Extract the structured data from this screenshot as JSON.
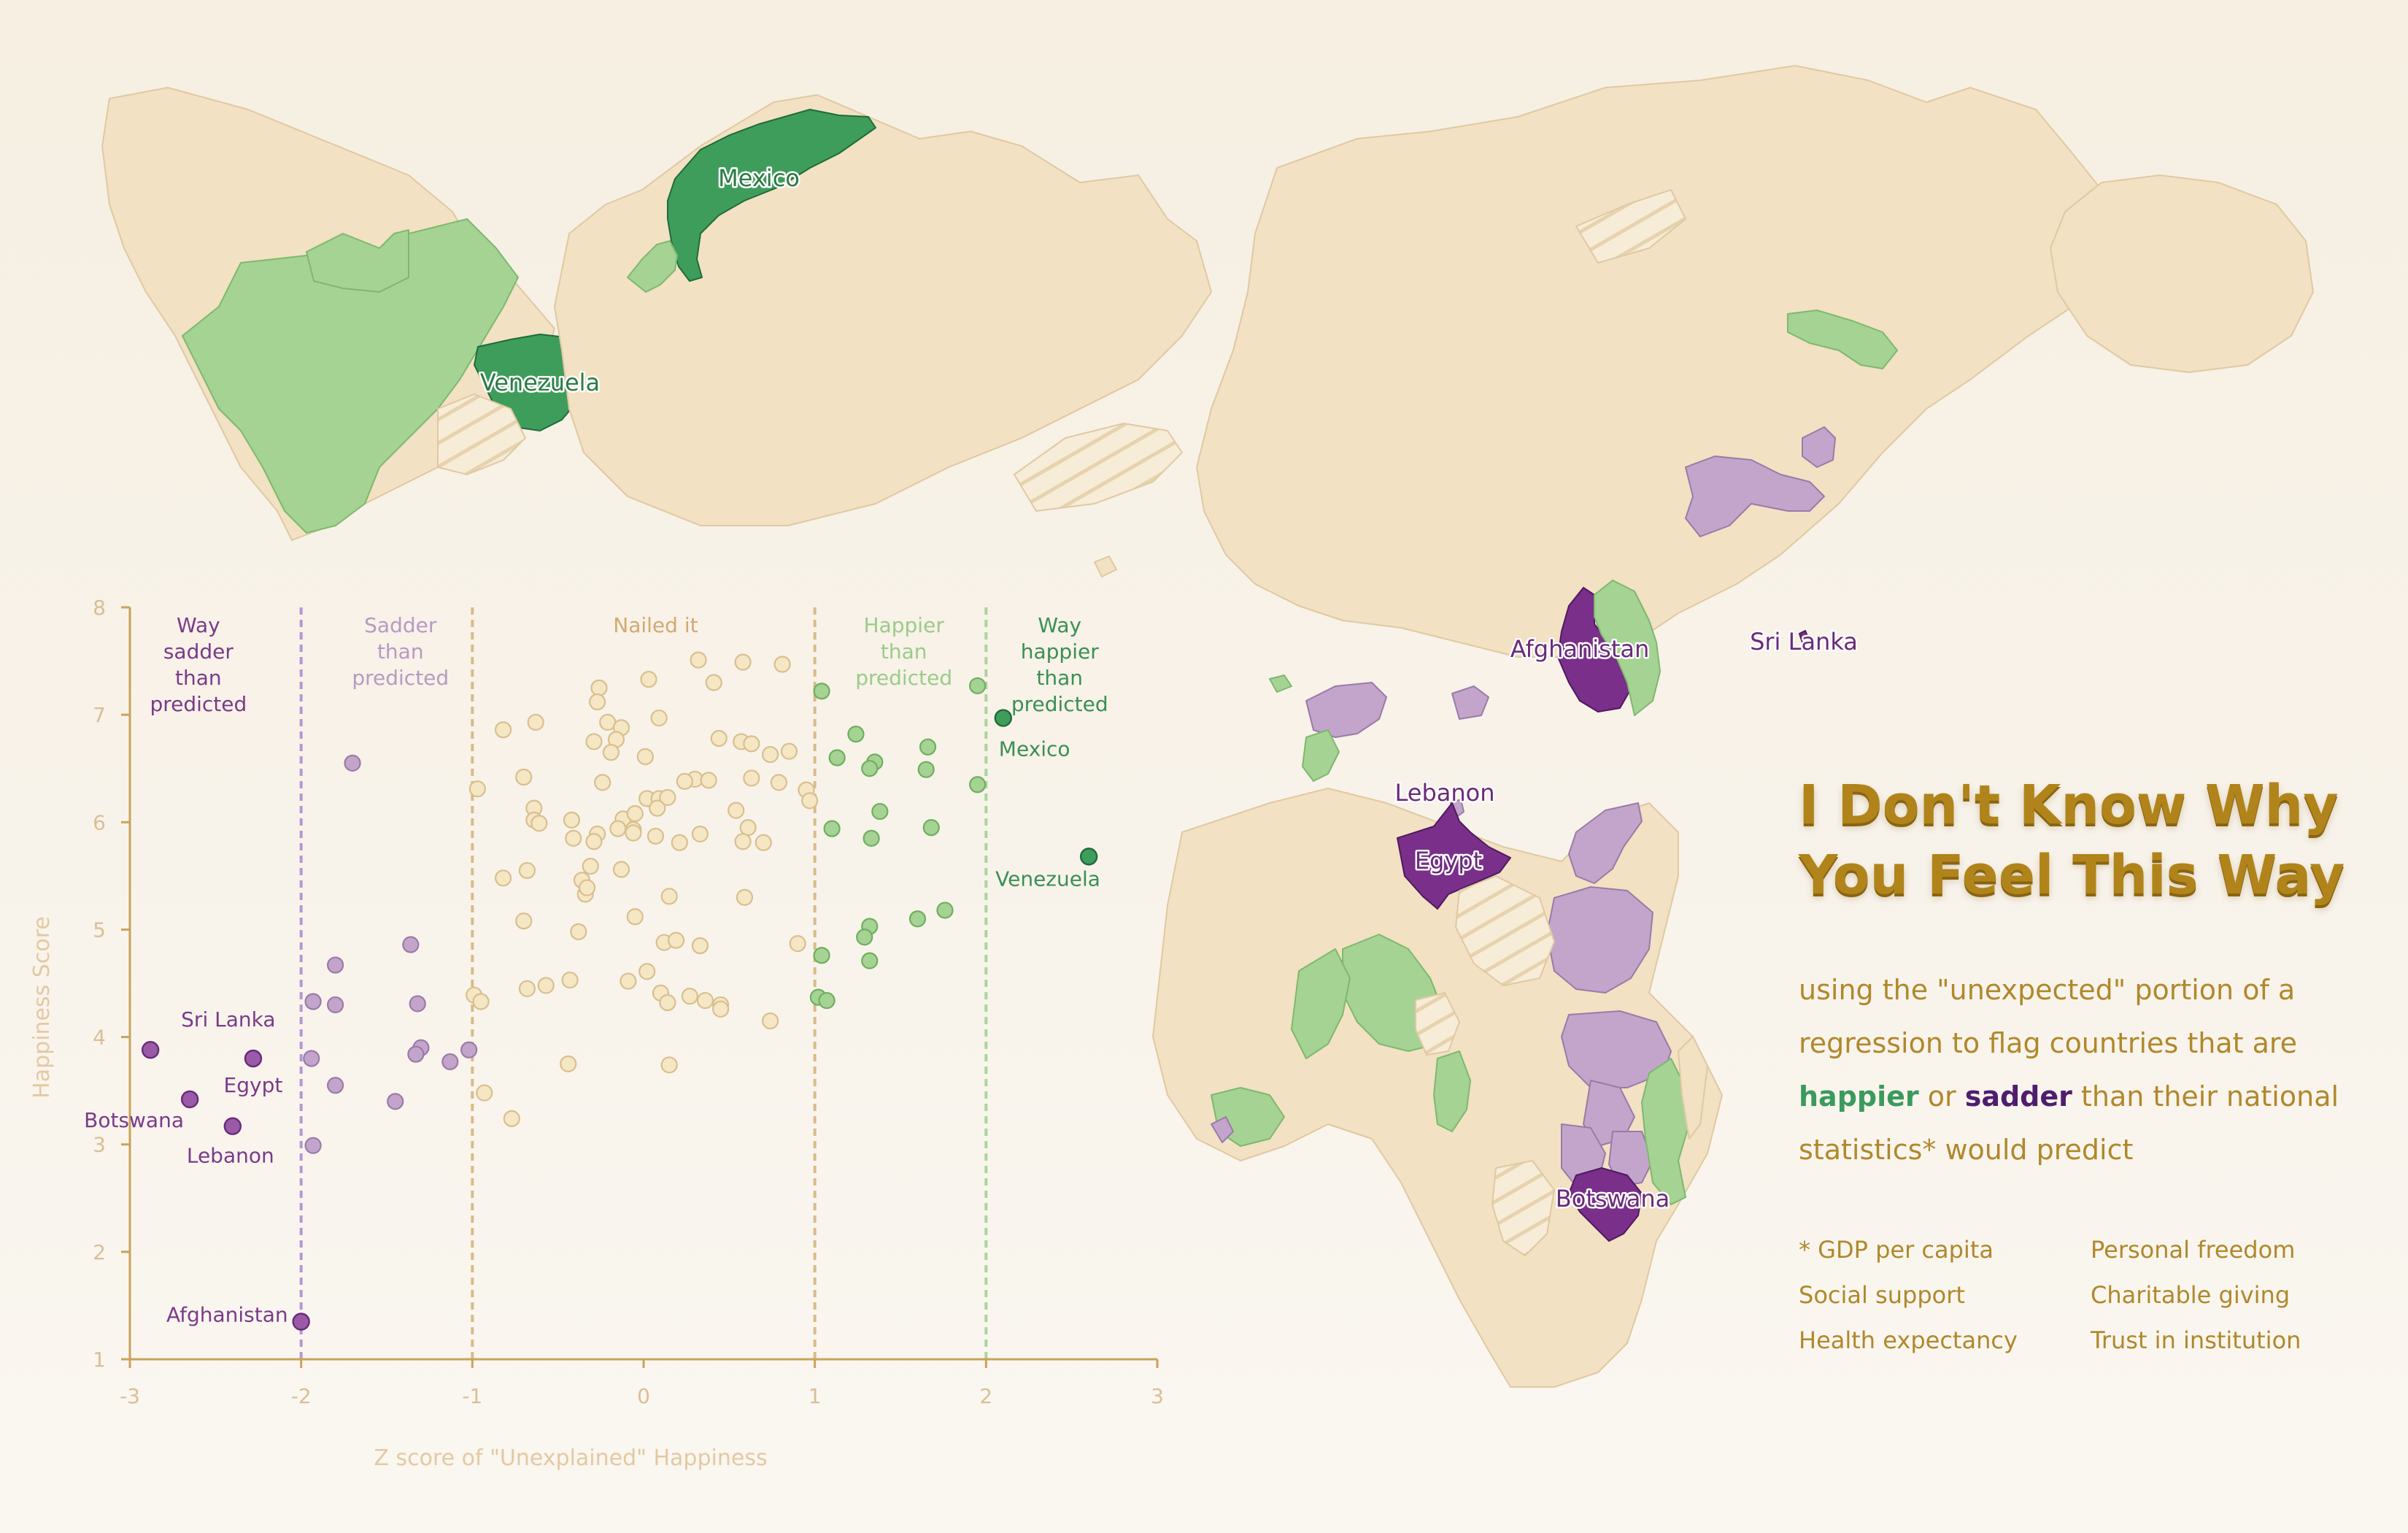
{
  "title": {
    "line1": "I Don't Know Why",
    "line2": "You Feel This Way"
  },
  "subtitle": {
    "part1": "using the \"unexpected\" portion of a regression to flag countries that are",
    "happier": "happier",
    "or": "or",
    "sadder": "sadder",
    "part2": "than their national statistics* would predict"
  },
  "factors": [
    "* GDP per capita",
    "Personal freedom",
    "Social support",
    "Charitable giving",
    "Health expectancy",
    "Trust in institution"
  ],
  "colors": {
    "land": "#f2e1c2",
    "land_border": "#e0c9a2",
    "happier": "#a5d394",
    "happier_border": "#7fb86f",
    "way_happier": "#3f9d5c",
    "way_happier_border": "#1f6b3a",
    "sadder": "#c3a5cc",
    "sadder_border": "#9b7aa8",
    "way_sadder": "#7a2f8a",
    "way_sadder_border": "#4f1a5e",
    "axis": "#c9a35c",
    "neutral_point": "#f5e6c4"
  },
  "map_labels": [
    "Mexico",
    "Venezuela",
    "Afghanistan",
    "Sri Lanka",
    "Lebanon",
    "Egypt",
    "Botswana"
  ],
  "chart_data": {
    "type": "scatter",
    "xlabel": "Z score of \"Unexplained\" Happiness",
    "ylabel": "Happiness Score",
    "xlim": [
      -3,
      3
    ],
    "ylim": [
      1,
      8
    ],
    "xticks": [
      "-3",
      "-2",
      "-1",
      "0",
      "1",
      "2",
      "3"
    ],
    "yticks": [
      "1",
      "2",
      "3",
      "4",
      "5",
      "6",
      "7",
      "8"
    ],
    "thresholds": [
      -2,
      -1,
      1,
      2
    ],
    "zones": [
      {
        "label": "Way sadder than predicted",
        "lines": [
          "Way",
          "sadder",
          "than",
          "predicted"
        ],
        "x": -2.6,
        "category": "way_sadder"
      },
      {
        "label": "Sadder than predicted",
        "lines": [
          "Sadder",
          "than",
          "predicted"
        ],
        "x": -1.42,
        "category": "sadder"
      },
      {
        "label": "Nailed it",
        "lines": [
          "Nailed it"
        ],
        "x": 0.07,
        "category": "neutral"
      },
      {
        "label": "Happier than predicted",
        "lines": [
          "Happier",
          "than",
          "predicted"
        ],
        "x": 1.52,
        "category": "happier"
      },
      {
        "label": "Way happier than predicted",
        "lines": [
          "Way",
          "happier",
          "than",
          "predicted"
        ],
        "x": 2.43,
        "category": "way_happier"
      }
    ],
    "labeled_points": [
      {
        "name": "Sri Lanka",
        "x": -2.88,
        "y": 3.88,
        "category": "way_sadder"
      },
      {
        "name": "Egypt",
        "x": -2.28,
        "y": 3.8,
        "category": "way_sadder"
      },
      {
        "name": "Botswana",
        "x": -2.65,
        "y": 3.42,
        "category": "way_sadder"
      },
      {
        "name": "Lebanon",
        "x": -2.4,
        "y": 3.17,
        "category": "way_sadder"
      },
      {
        "name": "Afghanistan",
        "x": -2.0,
        "y": 1.35,
        "category": "way_sadder"
      },
      {
        "name": "Mexico",
        "x": 2.1,
        "y": 6.97,
        "category": "way_happier"
      },
      {
        "name": "Venezuela",
        "x": 2.6,
        "y": 5.68,
        "category": "way_happier"
      }
    ],
    "points": {
      "sadder": [
        [
          -1.7,
          6.55
        ],
        [
          -1.36,
          4.86
        ],
        [
          -1.8,
          4.67
        ],
        [
          -1.93,
          4.33
        ],
        [
          -1.8,
          4.3
        ],
        [
          -1.32,
          4.31
        ],
        [
          -1.3,
          3.9
        ],
        [
          -1.33,
          3.84
        ],
        [
          -1.13,
          3.77
        ],
        [
          -1.94,
          3.8
        ],
        [
          -1.8,
          3.55
        ],
        [
          -1.45,
          3.4
        ],
        [
          -1.93,
          2.99
        ],
        [
          -1.02,
          3.88
        ]
      ],
      "happier": [
        [
          1.04,
          7.22
        ],
        [
          1.24,
          6.82
        ],
        [
          1.66,
          6.7
        ],
        [
          1.13,
          6.6
        ],
        [
          1.35,
          6.56
        ],
        [
          1.32,
          6.5
        ],
        [
          1.65,
          6.49
        ],
        [
          1.95,
          6.35
        ],
        [
          1.38,
          6.1
        ],
        [
          1.1,
          5.94
        ],
        [
          1.68,
          5.95
        ],
        [
          1.33,
          5.85
        ],
        [
          1.76,
          5.18
        ],
        [
          1.6,
          5.1
        ],
        [
          1.32,
          5.03
        ],
        [
          1.29,
          4.93
        ],
        [
          1.04,
          4.76
        ],
        [
          1.32,
          4.71
        ],
        [
          1.02,
          4.37
        ],
        [
          1.07,
          4.34
        ],
        [
          1.95,
          7.27
        ]
      ],
      "neutral": [
        [
          0.81,
          7.47
        ],
        [
          0.32,
          7.51
        ],
        [
          0.58,
          7.49
        ],
        [
          0.41,
          7.3
        ],
        [
          0.03,
          7.33
        ],
        [
          -0.26,
          7.25
        ],
        [
          -0.27,
          7.12
        ],
        [
          -0.82,
          6.86
        ],
        [
          -0.63,
          6.93
        ],
        [
          -0.21,
          6.93
        ],
        [
          -0.13,
          6.88
        ],
        [
          0.09,
          6.97
        ],
        [
          0.44,
          6.78
        ],
        [
          0.57,
          6.75
        ],
        [
          0.63,
          6.73
        ],
        [
          -0.29,
          6.75
        ],
        [
          -0.16,
          6.77
        ],
        [
          -0.19,
          6.65
        ],
        [
          0.01,
          6.61
        ],
        [
          0.74,
          6.63
        ],
        [
          0.85,
          6.66
        ],
        [
          0.3,
          6.4
        ],
        [
          0.24,
          6.38
        ],
        [
          0.38,
          6.39
        ],
        [
          0.63,
          6.41
        ],
        [
          0.79,
          6.37
        ],
        [
          -0.24,
          6.37
        ],
        [
          -0.7,
          6.42
        ],
        [
          -0.97,
          6.31
        ],
        [
          0.02,
          6.22
        ],
        [
          0.09,
          6.22
        ],
        [
          0.14,
          6.23
        ],
        [
          0.54,
          6.11
        ],
        [
          0.95,
          6.3
        ],
        [
          0.97,
          6.2
        ],
        [
          -0.64,
          6.13
        ],
        [
          -0.64,
          6.02
        ],
        [
          -0.12,
          6.03
        ],
        [
          -0.05,
          6.08
        ],
        [
          0.08,
          6.13
        ],
        [
          -0.42,
          6.02
        ],
        [
          -0.27,
          5.89
        ],
        [
          -0.15,
          5.94
        ],
        [
          -0.06,
          5.93
        ],
        [
          0.33,
          5.89
        ],
        [
          0.61,
          5.95
        ],
        [
          -0.61,
          5.99
        ],
        [
          -0.41,
          5.85
        ],
        [
          -0.06,
          5.9
        ],
        [
          0.21,
          5.81
        ],
        [
          0.58,
          5.82
        ],
        [
          0.7,
          5.81
        ],
        [
          -0.29,
          5.82
        ],
        [
          0.07,
          5.87
        ],
        [
          -0.68,
          5.55
        ],
        [
          -0.31,
          5.59
        ],
        [
          -0.36,
          5.46
        ],
        [
          -0.13,
          5.56
        ],
        [
          -0.82,
          5.48
        ],
        [
          -0.34,
          5.33
        ],
        [
          -0.33,
          5.39
        ],
        [
          0.15,
          5.31
        ],
        [
          0.59,
          5.3
        ],
        [
          -0.7,
          5.08
        ],
        [
          -0.38,
          4.98
        ],
        [
          -0.05,
          5.12
        ],
        [
          0.12,
          4.88
        ],
        [
          0.19,
          4.9
        ],
        [
          0.33,
          4.85
        ],
        [
          0.9,
          4.87
        ],
        [
          -0.57,
          4.48
        ],
        [
          -0.68,
          4.45
        ],
        [
          -0.43,
          4.53
        ],
        [
          -0.09,
          4.52
        ],
        [
          0.02,
          4.61
        ],
        [
          0.1,
          4.41
        ],
        [
          0.14,
          4.32
        ],
        [
          0.27,
          4.38
        ],
        [
          0.36,
          4.34
        ],
        [
          0.45,
          4.3
        ],
        [
          0.45,
          4.26
        ],
        [
          0.74,
          4.15
        ],
        [
          -0.99,
          4.39
        ],
        [
          -0.95,
          4.33
        ],
        [
          -0.44,
          3.75
        ],
        [
          0.15,
          3.74
        ],
        [
          -0.93,
          3.48
        ],
        [
          -0.77,
          3.24
        ]
      ]
    }
  }
}
